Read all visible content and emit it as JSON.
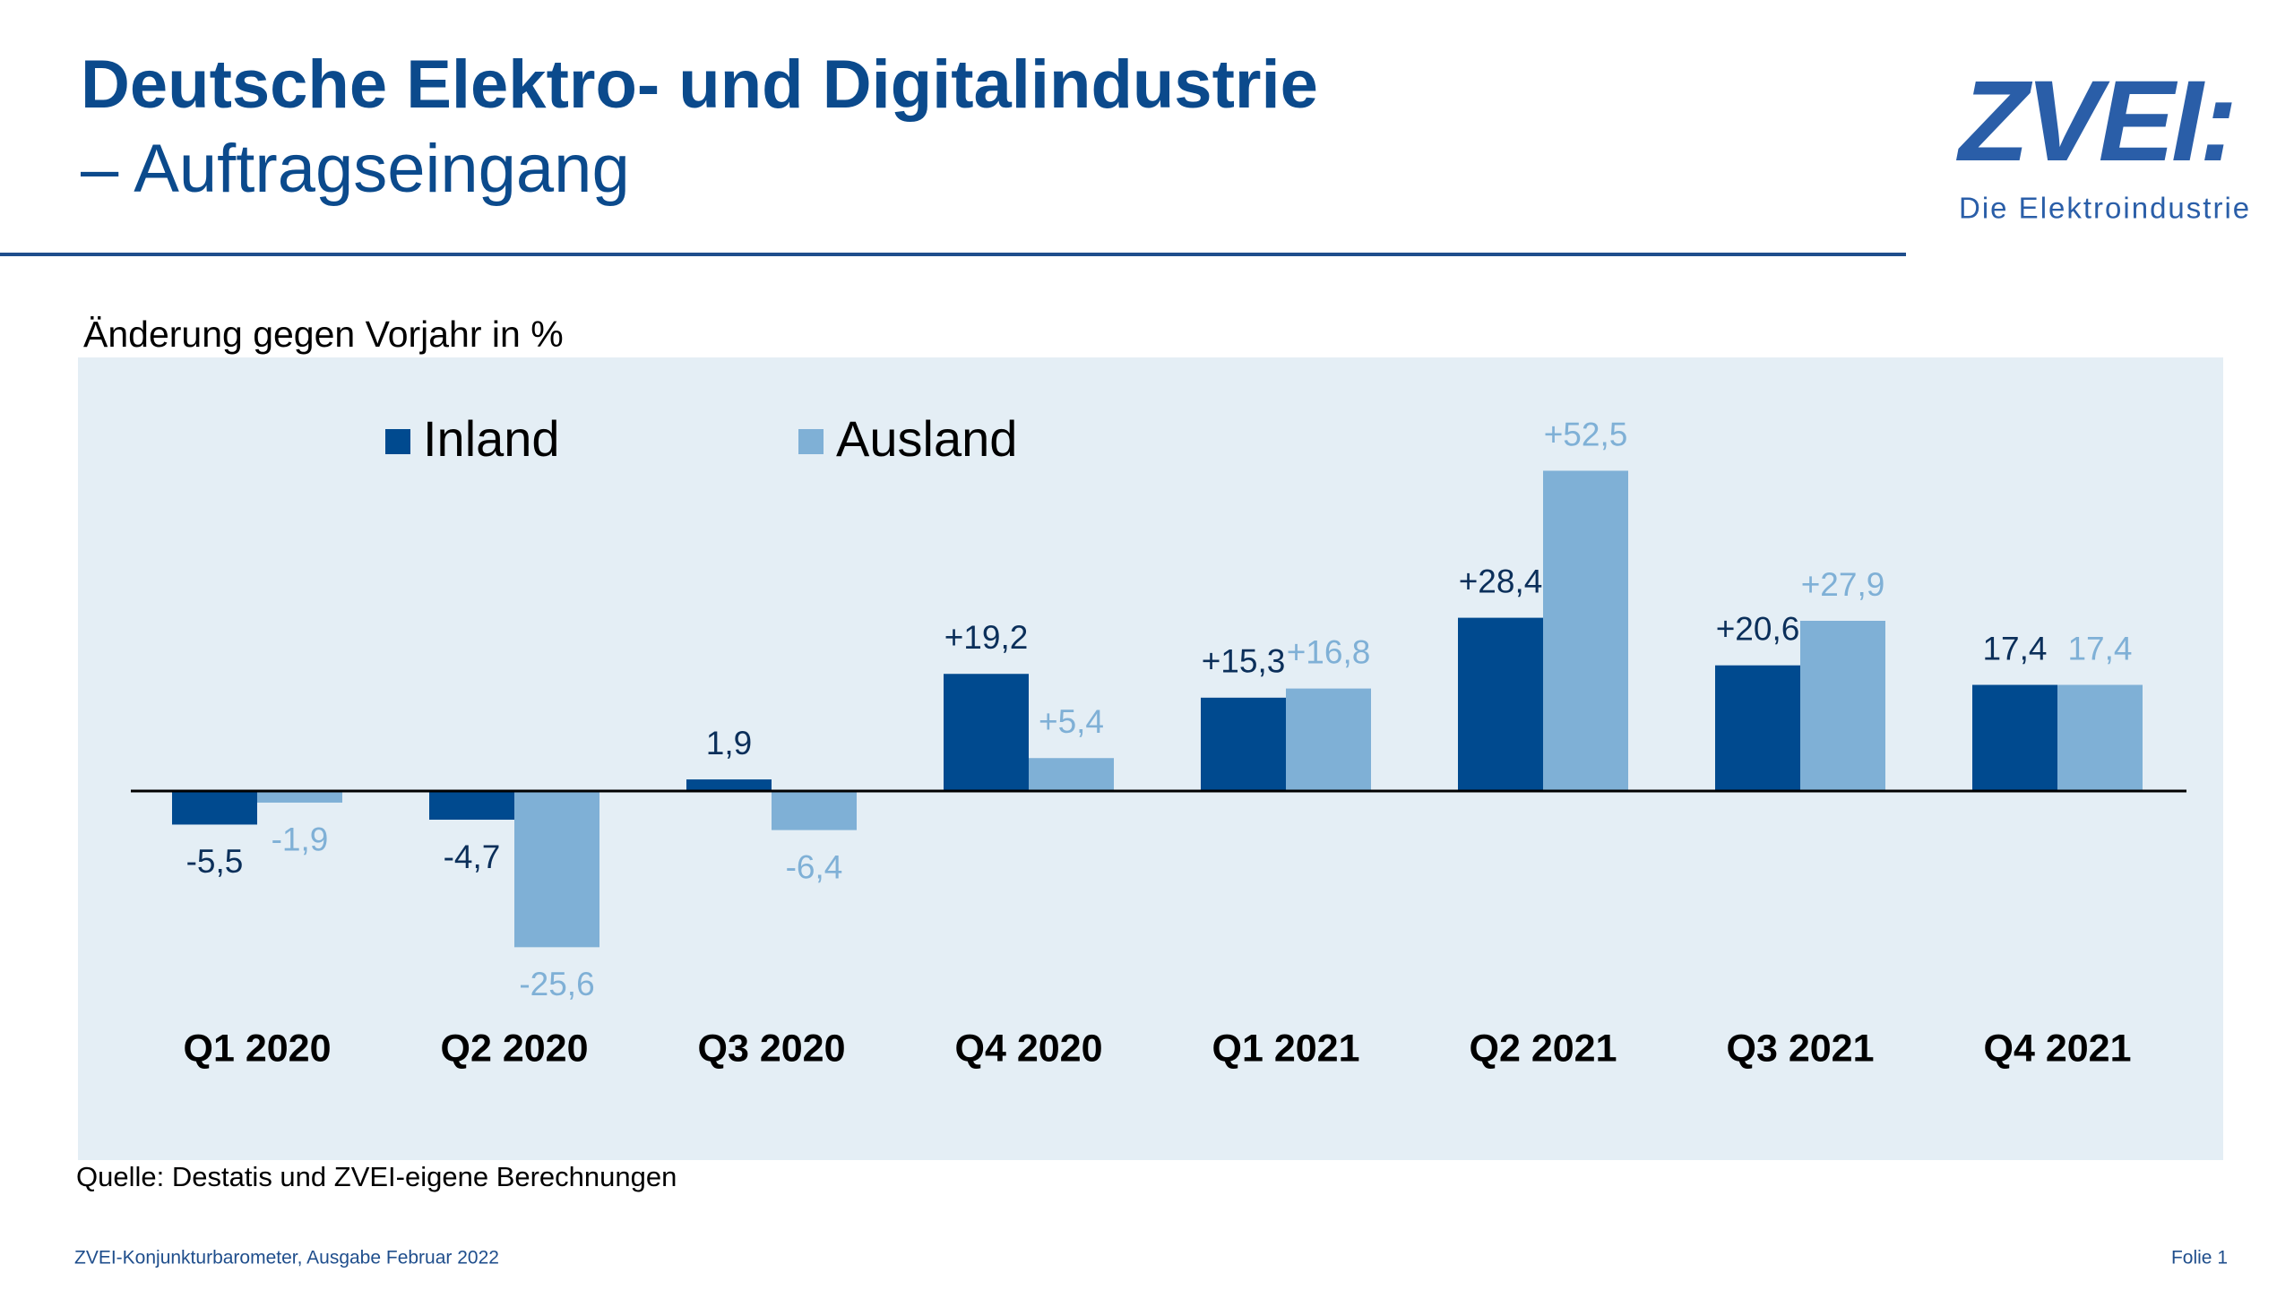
{
  "header": {
    "title": "Deutsche Elektro- und Digitalindustrie",
    "subtitle": "– Auftragseingang"
  },
  "logo": {
    "mark": "ZVEI:",
    "tagline": "Die Elektroindustrie"
  },
  "chart_data": {
    "type": "bar",
    "title": "Änderung gegen Vorjahr in %",
    "categories": [
      "Q1 2020",
      "Q2 2020",
      "Q3 2020",
      "Q4 2020",
      "Q1 2021",
      "Q2 2021",
      "Q3 2021",
      "Q4 2021"
    ],
    "series": [
      {
        "name": "Inland",
        "color": "#004a8f",
        "label_color": "#0b2f5a",
        "values": [
          -5.5,
          -4.7,
          1.9,
          19.2,
          15.3,
          28.4,
          20.6,
          17.4
        ],
        "value_labels": [
          "-5,5",
          "-4,7",
          "1,9",
          "+19,2",
          "+15,3",
          "+28,4",
          "+20,6",
          "17,4"
        ]
      },
      {
        "name": "Ausland",
        "color": "#7fb0d6",
        "label_color": "#7fb0d6",
        "values": [
          -1.9,
          -25.6,
          -6.4,
          5.4,
          16.8,
          52.5,
          27.9,
          17.4
        ],
        "value_labels": [
          "-1,9",
          "-25,6",
          "-6,4",
          "+5,4",
          "+16,8",
          "+52,5",
          "+27,9",
          "17,4"
        ]
      }
    ]
  },
  "source": "Quelle: Destatis und ZVEI-eigene Berechnungen",
  "footer": {
    "left": "ZVEI-Konjunkturbarometer, Ausgabe Februar 2022",
    "right": "Folie 1"
  }
}
